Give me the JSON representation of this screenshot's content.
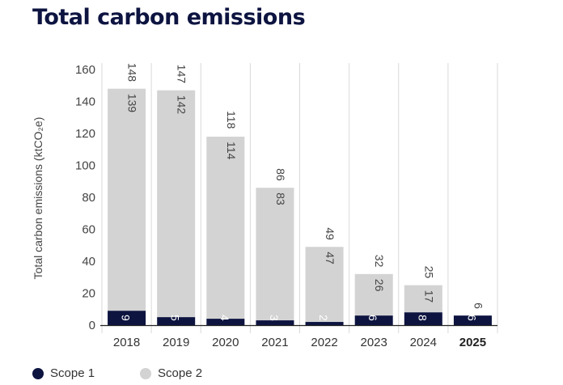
{
  "page_title": "Total carbon emissions",
  "colors": {
    "scope1": "#0d1440",
    "scope2": "#d3d3d3",
    "grid": "#d9d9d9",
    "axis": "#222222"
  },
  "chart_data": {
    "type": "bar",
    "stacked": true,
    "title": "Total carbon emissions",
    "xlabel": "",
    "ylabel": "Total carbon emissions (ktCO₂e)",
    "ylim": [
      0,
      160
    ],
    "yticks": [
      0,
      20,
      40,
      60,
      80,
      100,
      120,
      140,
      160
    ],
    "categories": [
      "2018",
      "2019",
      "2020",
      "2021",
      "2022",
      "2023",
      "2024",
      "2025"
    ],
    "bold_categories": [
      "2025"
    ],
    "series": [
      {
        "name": "Scope 1",
        "values": [
          9,
          5,
          4,
          3,
          2,
          6,
          8,
          6
        ]
      },
      {
        "name": "Scope 2",
        "values": [
          139,
          142,
          114,
          83,
          47,
          26,
          17,
          null
        ]
      }
    ],
    "totals": [
      148,
      147,
      118,
      86,
      49,
      32,
      25,
      6
    ],
    "legend_position": "bottom-left",
    "grid": "vertical-separators"
  }
}
